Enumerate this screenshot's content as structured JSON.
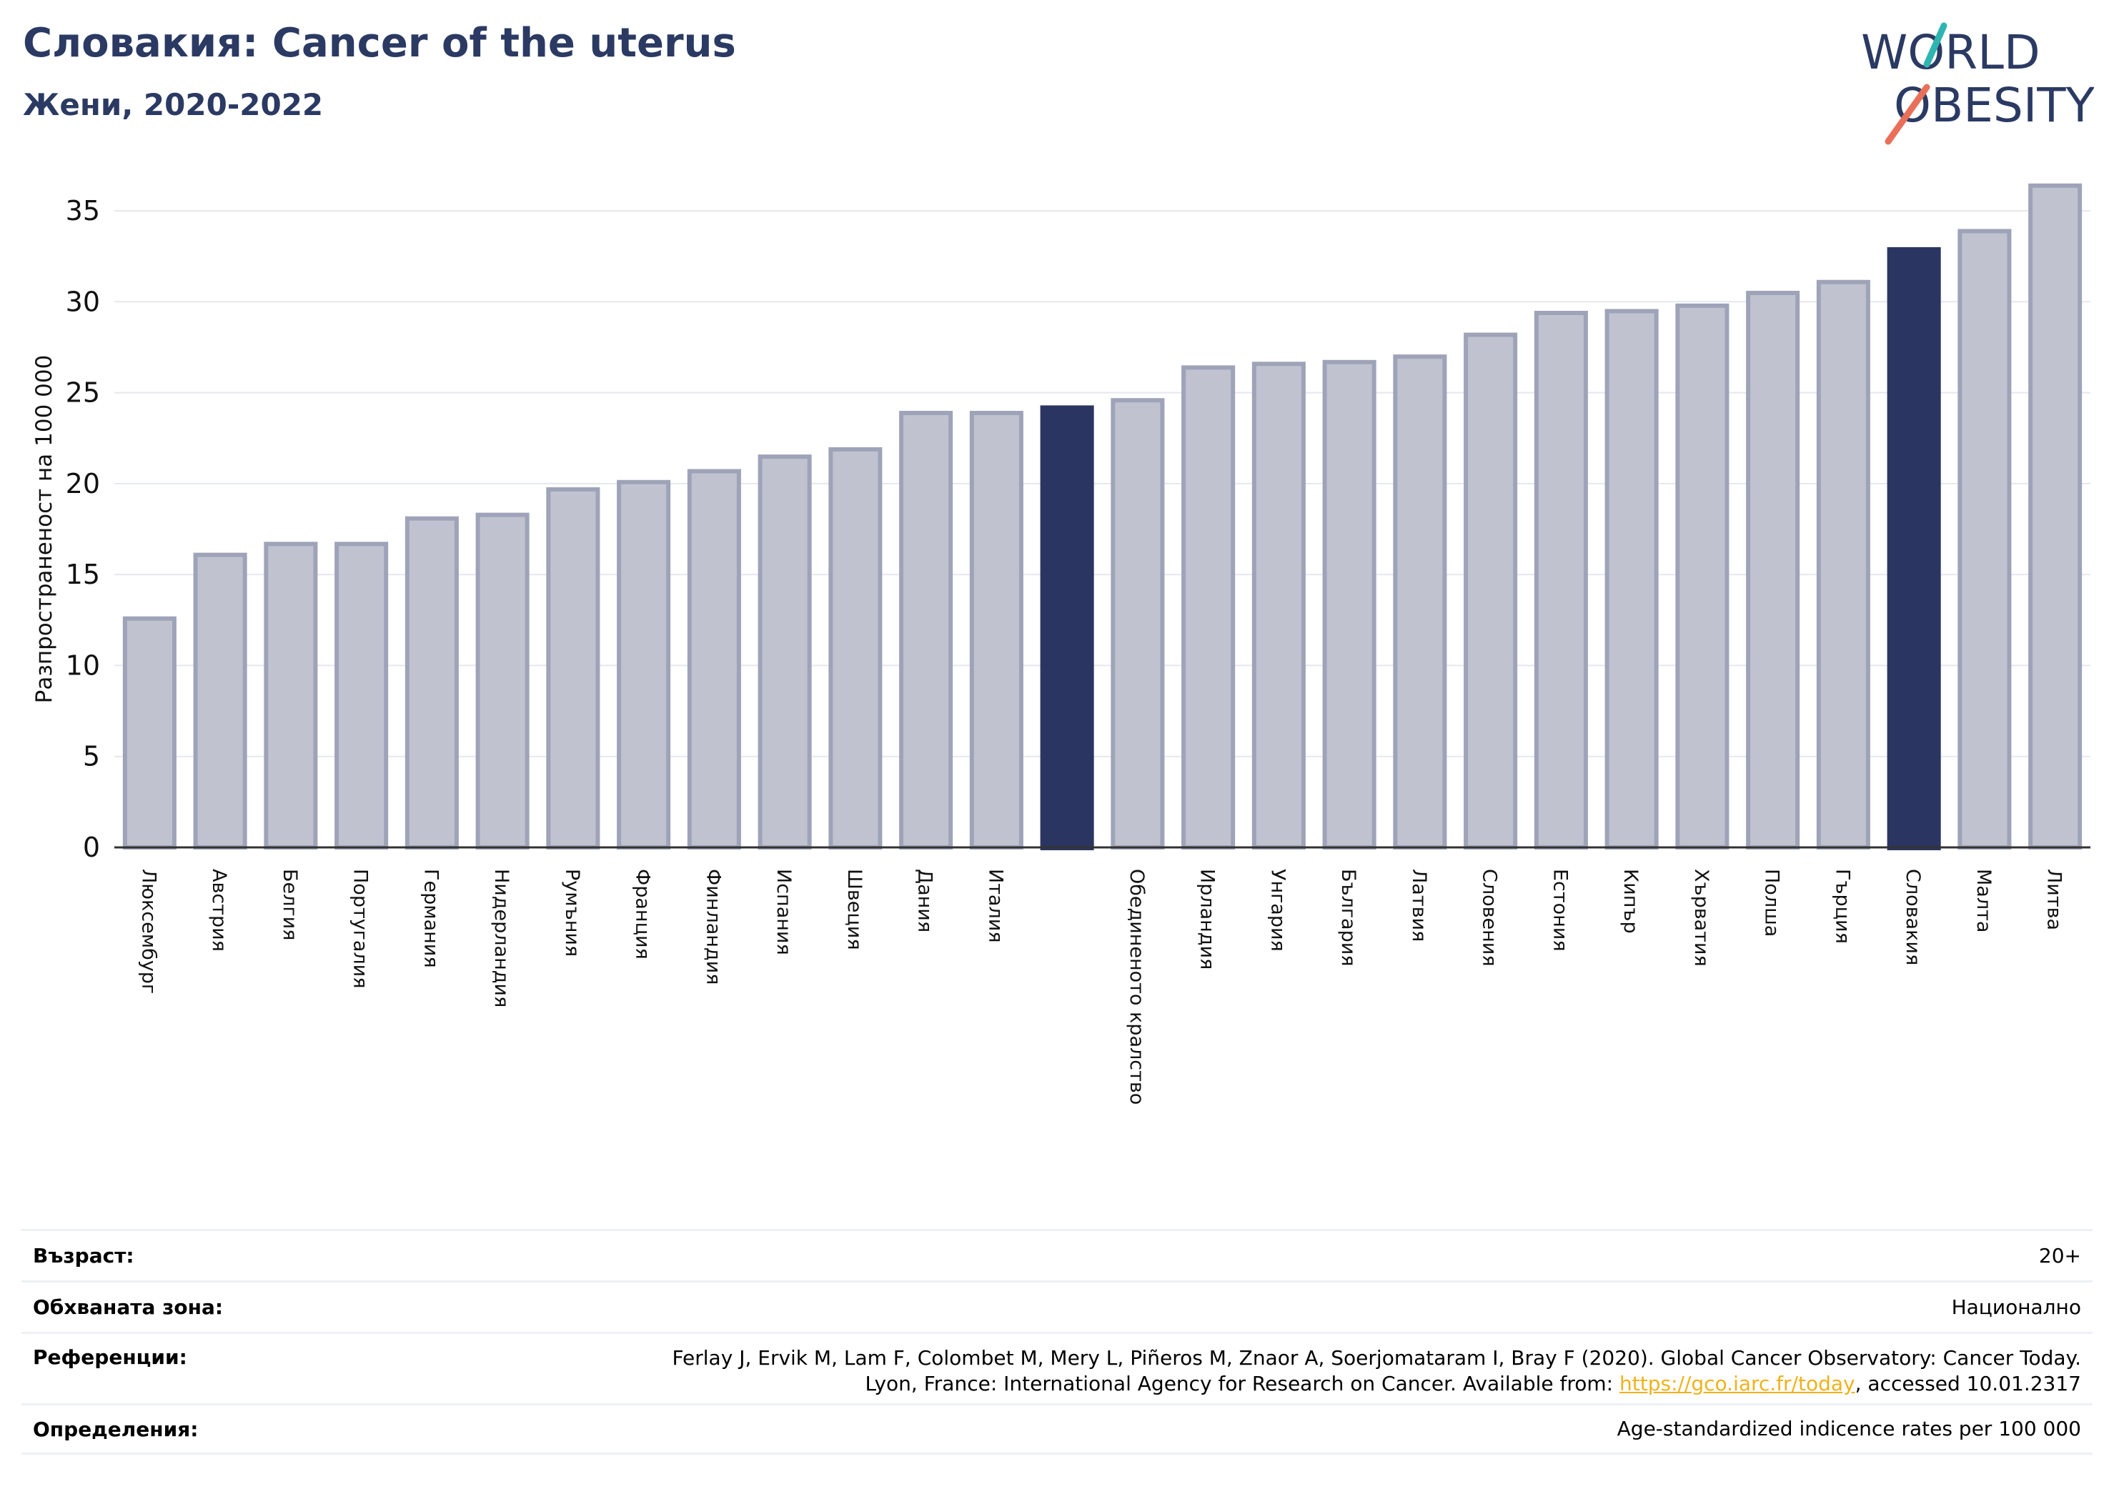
{
  "header": {
    "title": "Словакия: Cancer of the uterus",
    "subtitle": "Жени, 2020-2022"
  },
  "logo": {
    "line1": "WORLD",
    "line2": "OBESITY"
  },
  "chart_data": {
    "type": "bar",
    "ylabel": "Разпространеност  на 100 000",
    "ylim": [
      0,
      37
    ],
    "yticks": [
      0,
      5,
      10,
      15,
      20,
      25,
      30,
      35
    ],
    "grid": true,
    "categories": [
      "Люксембург",
      "Австрия",
      "Белгия",
      "Португалия",
      "Германия",
      "Нидерландия",
      "Румъния",
      "Франция",
      "Финландия",
      "Испания",
      "Швеция",
      "Дания",
      "Италия",
      "",
      "Обединеното кралство",
      "Ирландия",
      "Унгария",
      "България",
      "Латвия",
      "Словения",
      "Естония",
      "Кипър",
      "Хърватия",
      "Полша",
      "Гърция",
      "Словакия",
      "Малта",
      "Литва"
    ],
    "values": [
      12.7,
      16.2,
      16.8,
      16.8,
      18.2,
      18.4,
      19.8,
      20.2,
      20.8,
      21.6,
      22.0,
      24.0,
      24.0,
      24.3,
      24.7,
      26.5,
      26.7,
      26.8,
      27.1,
      28.3,
      29.5,
      29.6,
      29.9,
      30.6,
      31.2,
      33.0,
      34.0,
      36.5
    ],
    "highlighted": [
      13,
      25
    ],
    "colors": {
      "bar": "#c0c3cf",
      "bar_edge": "#9ea3b8",
      "highlight": "#2b3561",
      "grid": "#e6e8ef",
      "axis": "#333333"
    }
  },
  "info": {
    "rows": [
      {
        "label": "Възраст:",
        "value": "20+"
      },
      {
        "label": "Обхваната зона:",
        "value": "Национално"
      },
      {
        "label": "Референции:",
        "value_line1": "Ferlay J, Ervik M, Lam F, Colombet M, Mery L, Piñeros M, Znaor A, Soerjomataram I, Bray F (2020). Global Cancer Observatory: Cancer Today.",
        "value_line2_pre": "Lyon, France: International Agency for Research on Cancer. Available from: ",
        "link": "https://gco.iarc.fr/today",
        "value_line2_post": ", accessed 10.01.2317"
      },
      {
        "label": "Определения:",
        "value": "Age-standardized indicence rates per 100 000"
      }
    ]
  }
}
